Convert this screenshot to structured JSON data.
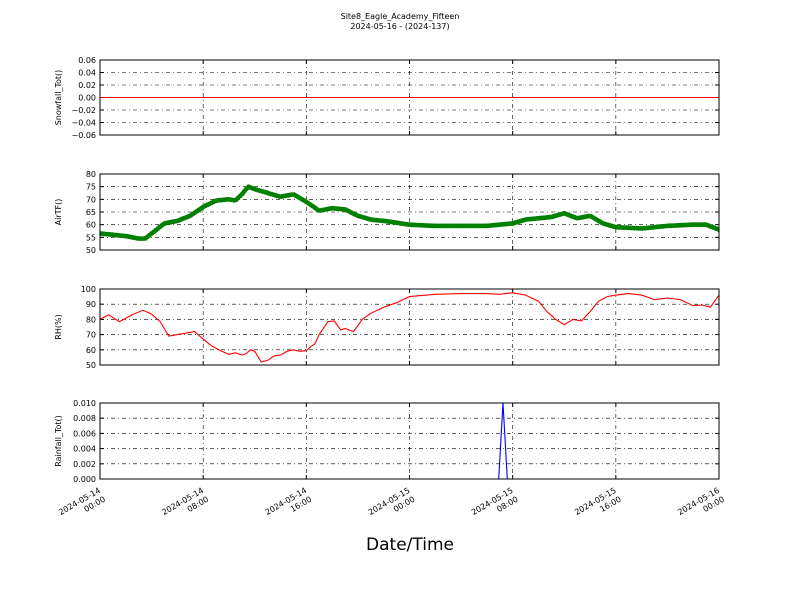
{
  "figure": {
    "title_line1": "Site8_Eagle_Academy_Fifteen",
    "title_line2": "2024-05-16 - (2024-137)",
    "xlabel": "Date/Time"
  },
  "chart_data": [
    {
      "type": "line",
      "ylabel": "Snowfall_Tot()",
      "ylim": [
        -0.06,
        0.06
      ],
      "yticks": [
        -0.06,
        -0.04,
        -0.02,
        0.0,
        0.02,
        0.04,
        0.06
      ],
      "ytick_labels": [
        "−0.06",
        "−0.04",
        "−0.02",
        "0.00",
        "0.02",
        "0.04",
        "0.06"
      ],
      "grid": true,
      "series": [
        {
          "color": "#ff0000",
          "marker": "none",
          "x": [
            "2024-05-14 00:00",
            "2024-05-16 00:00"
          ],
          "y": [
            0.0,
            0.0
          ]
        }
      ]
    },
    {
      "type": "line",
      "ylabel": "AirTF()",
      "ylim": [
        50,
        80
      ],
      "yticks": [
        50,
        55,
        60,
        65,
        70,
        75,
        80
      ],
      "ytick_labels": [
        "50",
        "55",
        "60",
        "65",
        "70",
        "75",
        "80"
      ],
      "grid": true,
      "series": [
        {
          "color": "#008000",
          "marker": "dot",
          "x": [
            "2024-05-14 00:00",
            "2024-05-14 01:00",
            "2024-05-14 02:00",
            "2024-05-14 03:00",
            "2024-05-14 03:30",
            "2024-05-14 04:00",
            "2024-05-14 05:00",
            "2024-05-14 06:00",
            "2024-05-14 07:00",
            "2024-05-14 08:00",
            "2024-05-14 09:00",
            "2024-05-14 10:00",
            "2024-05-14 10:30",
            "2024-05-14 11:00",
            "2024-05-14 11:30",
            "2024-05-14 12:00",
            "2024-05-14 13:00",
            "2024-05-14 14:00",
            "2024-05-14 15:00",
            "2024-05-14 16:00",
            "2024-05-14 17:00",
            "2024-05-14 18:00",
            "2024-05-14 19:00",
            "2024-05-14 20:00",
            "2024-05-14 21:00",
            "2024-05-14 22:00",
            "2024-05-15 00:00",
            "2024-05-15 02:00",
            "2024-05-15 04:00",
            "2024-05-15 06:00",
            "2024-05-15 07:00",
            "2024-05-15 08:00",
            "2024-05-15 09:00",
            "2024-05-15 10:00",
            "2024-05-15 11:00",
            "2024-05-15 12:00",
            "2024-05-15 13:00",
            "2024-05-15 14:00",
            "2024-05-15 15:00",
            "2024-05-15 16:00",
            "2024-05-15 18:00",
            "2024-05-15 20:00",
            "2024-05-15 22:00",
            "2024-05-15 23:00",
            "2024-05-16 00:00"
          ],
          "y": [
            56.5,
            56,
            55.5,
            54.5,
            54.5,
            56.5,
            60.5,
            61.5,
            63.5,
            67,
            69.5,
            70,
            69.5,
            72,
            75,
            74,
            72.5,
            71,
            72,
            69,
            65.5,
            66.5,
            66,
            63.5,
            62,
            61.5,
            60,
            59.5,
            59.5,
            59.5,
            60,
            60.5,
            62,
            62.5,
            63,
            64.5,
            62.5,
            63.5,
            60.5,
            59,
            58.5,
            59.5,
            60,
            60,
            58
          ]
        }
      ]
    },
    {
      "type": "line",
      "ylabel": "RH(%)",
      "ylim": [
        50,
        100
      ],
      "yticks": [
        50,
        60,
        70,
        80,
        90,
        100
      ],
      "ytick_labels": [
        "50",
        "60",
        "70",
        "80",
        "90",
        "100"
      ],
      "grid": true,
      "series": [
        {
          "color": "#ff0000",
          "marker": "none",
          "x": [
            "2024-05-14 00:00",
            "2024-05-14 00:40",
            "2024-05-14 01:30",
            "2024-05-14 02:30",
            "2024-05-14 03:20",
            "2024-05-14 04:00",
            "2024-05-14 04:40",
            "2024-05-14 05:20",
            "2024-05-14 06:00",
            "2024-05-14 06:40",
            "2024-05-14 07:20",
            "2024-05-14 08:00",
            "2024-05-14 08:40",
            "2024-05-14 09:20",
            "2024-05-14 10:00",
            "2024-05-14 10:30",
            "2024-05-14 11:00",
            "2024-05-14 11:20",
            "2024-05-14 11:40",
            "2024-05-14 12:00",
            "2024-05-14 12:30",
            "2024-05-14 13:00",
            "2024-05-14 13:30",
            "2024-05-14 14:00",
            "2024-05-14 14:30",
            "2024-05-14 15:00",
            "2024-05-14 15:30",
            "2024-05-14 16:00",
            "2024-05-14 16:20",
            "2024-05-14 16:40",
            "2024-05-14 17:00",
            "2024-05-14 17:40",
            "2024-05-14 18:10",
            "2024-05-14 18:40",
            "2024-05-14 19:00",
            "2024-05-14 19:40",
            "2024-05-14 20:20",
            "2024-05-14 21:00",
            "2024-05-14 22:00",
            "2024-05-14 23:00",
            "2024-05-15 00:00",
            "2024-05-15 02:00",
            "2024-05-15 04:00",
            "2024-05-15 06:00",
            "2024-05-15 07:00",
            "2024-05-15 08:00",
            "2024-05-15 09:00",
            "2024-05-15 10:00",
            "2024-05-15 10:40",
            "2024-05-15 11:20",
            "2024-05-15 12:00",
            "2024-05-15 12:40",
            "2024-05-15 13:20",
            "2024-05-15 14:00",
            "2024-05-15 14:40",
            "2024-05-15 15:20",
            "2024-05-15 16:00",
            "2024-05-15 17:00",
            "2024-05-15 18:00",
            "2024-05-15 19:00",
            "2024-05-15 20:00",
            "2024-05-15 21:00",
            "2024-05-15 22:00",
            "2024-05-15 22:40",
            "2024-05-15 23:20",
            "2024-05-16 00:00"
          ],
          "y": [
            80,
            83,
            78.5,
            83,
            86,
            83.5,
            78.5,
            69,
            70,
            71,
            72,
            67,
            62.5,
            59.5,
            57,
            58,
            56.5,
            57.5,
            60,
            59,
            52,
            53,
            56,
            56.5,
            59,
            60,
            59,
            59.5,
            62,
            64,
            70,
            78.5,
            79,
            73,
            74,
            72,
            80,
            84,
            88,
            91,
            95,
            96.5,
            97,
            97,
            96.5,
            97.5,
            96,
            92,
            85,
            80,
            76.5,
            80,
            79,
            85,
            92,
            95,
            96,
            97,
            96,
            93,
            94,
            93,
            89,
            89.5,
            88,
            96
          ]
        }
      ]
    },
    {
      "type": "line",
      "ylabel": "Rainfall_Tot()",
      "ylim": [
        0.0,
        0.01
      ],
      "yticks": [
        0.0,
        0.002,
        0.004,
        0.006,
        0.008,
        0.01
      ],
      "ytick_labels": [
        "0.000",
        "0.002",
        "0.004",
        "0.006",
        "0.008",
        "0.010"
      ],
      "grid": true,
      "series": [
        {
          "color": "#0000ff",
          "marker": "none",
          "x": [
            "2024-05-14 00:00",
            "2024-05-15 06:55",
            "2024-05-15 07:15",
            "2024-05-15 07:35",
            "2024-05-16 00:00"
          ],
          "y": [
            0.0,
            0.0,
            0.01,
            0.0,
            0.0
          ]
        }
      ]
    }
  ],
  "x_axis": {
    "range": [
      "2024-05-14 00:00",
      "2024-05-16 00:00"
    ],
    "ticks": [
      {
        "at": "2024-05-14 00:00",
        "line1": "2024-05-14",
        "line2": "00:00"
      },
      {
        "at": "2024-05-14 08:00",
        "line1": "2024-05-14",
        "line2": "08:00"
      },
      {
        "at": "2024-05-14 16:00",
        "line1": "2024-05-14",
        "line2": "16:00"
      },
      {
        "at": "2024-05-15 00:00",
        "line1": "2024-05-15",
        "line2": "00:00"
      },
      {
        "at": "2024-05-15 08:00",
        "line1": "2024-05-15",
        "line2": "08:00"
      },
      {
        "at": "2024-05-15 16:00",
        "line1": "2024-05-15",
        "line2": "16:00"
      },
      {
        "at": "2024-05-16 00:00",
        "line1": "2024-05-16",
        "line2": "00:00"
      }
    ]
  }
}
